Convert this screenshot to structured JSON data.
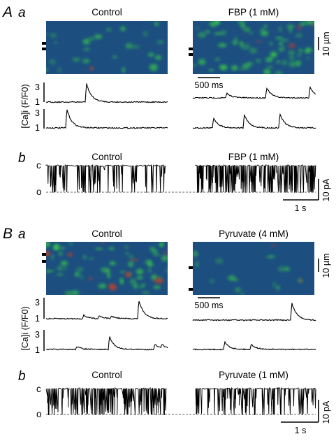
{
  "panels": {
    "A": {
      "letter": "A",
      "a": {
        "letter": "a",
        "control_label": "Control",
        "treatment_label": "FBP (1 mM)",
        "space_scale": "10 µm",
        "time_scale": "500 ms",
        "y_axis_label": "[Ca]i (F/F0)",
        "y_ticks": [
          "3",
          "1"
        ]
      },
      "b": {
        "letter": "b",
        "control_label": "Control",
        "treatment_label": "FBP (1 mM)",
        "closed_label": "c",
        "open_label": "o",
        "current_scale": "10 pA",
        "time_scale": "1 s"
      }
    },
    "B": {
      "letter": "B",
      "a": {
        "letter": "a",
        "control_label": "Control",
        "treatment_label": "Pyruvate (4 mM)",
        "space_scale": "10 µm",
        "time_scale": "500 ms",
        "y_axis_label": "[Ca]i (F/F0)",
        "y_ticks": [
          "3",
          "1"
        ]
      },
      "b": {
        "letter": "b",
        "control_label": "Control",
        "treatment_label": "Pyruvate (1 mM)",
        "closed_label": "c",
        "open_label": "o",
        "current_scale": "10 pA",
        "time_scale": "1 s"
      }
    }
  },
  "colors": {
    "image_background": "#1c4f80",
    "spark_green": "#39c24a",
    "spark_red": "#d04020",
    "trace": "#000000",
    "dashed": "#666666"
  }
}
